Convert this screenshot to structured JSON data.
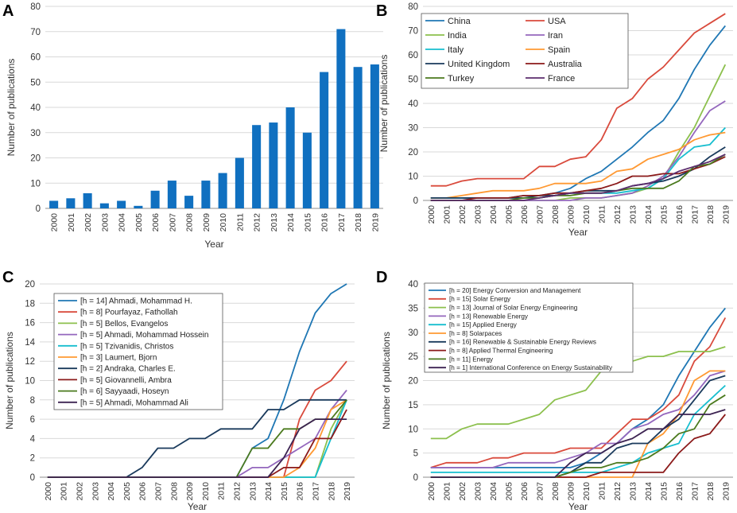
{
  "panels": [
    "A",
    "B",
    "C",
    "D"
  ],
  "chart_data": [
    {
      "panel": "A",
      "type": "bar",
      "xlabel": "Year",
      "ylabel": "Number of publications",
      "ylim": [
        0,
        80
      ],
      "yticks": [
        0,
        10,
        20,
        30,
        40,
        50,
        60,
        70,
        80
      ],
      "color": "#1070c0",
      "categories": [
        "2000",
        "2001",
        "2002",
        "2003",
        "2004",
        "2005",
        "2006",
        "2007",
        "2008",
        "2009",
        "2010",
        "2011",
        "2012",
        "2013",
        "2014",
        "2015",
        "2016",
        "2017",
        "2018",
        "2019"
      ],
      "values": [
        3,
        4,
        6,
        2,
        3,
        1,
        7,
        11,
        5,
        11,
        14,
        20,
        33,
        34,
        40,
        30,
        54,
        71,
        56,
        57
      ]
    },
    {
      "panel": "B",
      "type": "line",
      "xlabel": "Year",
      "ylabel": "Number of publications",
      "ylim": [
        0,
        80
      ],
      "yticks": [
        0,
        10,
        20,
        30,
        40,
        50,
        60,
        70,
        80
      ],
      "legend_columns": 2,
      "x": [
        "2000",
        "2001",
        "2002",
        "2003",
        "2004",
        "2005",
        "2006",
        "2007",
        "2008",
        "2009",
        "2010",
        "2011",
        "2012",
        "2013",
        "2014",
        "2015",
        "2016",
        "2017",
        "2018",
        "2019"
      ],
      "series": [
        {
          "name": "China",
          "color": "#1f77b4",
          "values": [
            1,
            1,
            1,
            1,
            1,
            1,
            2,
            2,
            3,
            5,
            9,
            12,
            17,
            22,
            28,
            33,
            42,
            54,
            64,
            72
          ]
        },
        {
          "name": "USA",
          "color": "#d94a3c",
          "values": [
            6,
            6,
            8,
            9,
            9,
            9,
            9,
            14,
            14,
            17,
            18,
            25,
            38,
            42,
            50,
            55,
            62,
            69,
            73,
            77
          ]
        },
        {
          "name": "India",
          "color": "#8cc04d",
          "values": [
            0,
            0,
            0,
            0,
            0,
            0,
            0,
            0,
            0,
            1,
            1,
            1,
            2,
            3,
            5,
            9,
            20,
            30,
            43,
            56
          ]
        },
        {
          "name": "Iran",
          "color": "#9467bd",
          "values": [
            0,
            0,
            0,
            0,
            0,
            0,
            0,
            0,
            0,
            0,
            1,
            1,
            2,
            3,
            6,
            10,
            18,
            28,
            37,
            41
          ]
        },
        {
          "name": "Italy",
          "color": "#17becf",
          "values": [
            1,
            1,
            1,
            1,
            1,
            1,
            1,
            1,
            2,
            3,
            3,
            3,
            3,
            4,
            5,
            9,
            17,
            22,
            23,
            30
          ]
        },
        {
          "name": "Spain",
          "color": "#ff9933",
          "values": [
            1,
            1,
            2,
            3,
            4,
            4,
            4,
            5,
            7,
            7,
            7,
            8,
            12,
            13,
            17,
            19,
            21,
            25,
            27,
            28
          ]
        },
        {
          "name": "United Kingdom",
          "color": "#1a3a5c",
          "values": [
            1,
            1,
            1,
            1,
            1,
            1,
            1,
            2,
            2,
            3,
            4,
            4,
            4,
            6,
            7,
            8,
            10,
            13,
            18,
            22
          ]
        },
        {
          "name": "Australia",
          "color": "#8b1a1a",
          "values": [
            0,
            0,
            0,
            1,
            1,
            1,
            2,
            2,
            3,
            3,
            4,
            5,
            7,
            10,
            10,
            11,
            11,
            13,
            15,
            18
          ]
        },
        {
          "name": "Turkey",
          "color": "#4b7a1e",
          "values": [
            0,
            0,
            0,
            0,
            0,
            0,
            1,
            1,
            2,
            2,
            3,
            3,
            4,
            5,
            5,
            5,
            8,
            14,
            15,
            19
          ]
        },
        {
          "name": "France",
          "color": "#5c2d6e",
          "values": [
            0,
            0,
            0,
            0,
            0,
            0,
            0,
            1,
            2,
            3,
            3,
            3,
            4,
            6,
            7,
            9,
            12,
            14,
            16,
            19
          ]
        }
      ]
    },
    {
      "panel": "C",
      "type": "line",
      "xlabel": "Year",
      "ylabel": "Number of publications",
      "ylim": [
        0,
        20
      ],
      "yticks": [
        0,
        2,
        4,
        6,
        8,
        10,
        12,
        14,
        16,
        18,
        20
      ],
      "x": [
        "2000",
        "2001",
        "2002",
        "2003",
        "2004",
        "2005",
        "2006",
        "2007",
        "2008",
        "2009",
        "2010",
        "2011",
        "2012",
        "2013",
        "2014",
        "2015",
        "2016",
        "2017",
        "2018",
        "2019"
      ],
      "series": [
        {
          "name": "[h = 14] Ahmadi, Mohammad H.",
          "color": "#1f77b4",
          "values": [
            0,
            0,
            0,
            0,
            0,
            0,
            0,
            0,
            0,
            0,
            0,
            0,
            0,
            3,
            4,
            8,
            13,
            17,
            19,
            20
          ]
        },
        {
          "name": "[h = 8] Pourfayaz, Fathollah",
          "color": "#d94a3c",
          "values": [
            0,
            0,
            0,
            0,
            0,
            0,
            0,
            0,
            0,
            0,
            0,
            0,
            0,
            0,
            0,
            0,
            6,
            9,
            10,
            12
          ]
        },
        {
          "name": "[h = 5] Bellos, Evangelos",
          "color": "#8cc04d",
          "values": [
            0,
            0,
            0,
            0,
            0,
            0,
            0,
            0,
            0,
            0,
            0,
            0,
            0,
            0,
            0,
            0,
            0,
            0,
            5,
            8
          ]
        },
        {
          "name": "[h = 5] Ahmadi, Mohammad Hossein",
          "color": "#9467bd",
          "values": [
            0,
            0,
            0,
            0,
            0,
            0,
            0,
            0,
            0,
            0,
            0,
            0,
            0,
            1,
            1,
            2,
            3,
            4,
            7,
            9
          ]
        },
        {
          "name": "[h = 5] Tzivanidis, Christos",
          "color": "#17becf",
          "values": [
            0,
            0,
            0,
            0,
            0,
            0,
            0,
            0,
            0,
            0,
            0,
            0,
            0,
            0,
            0,
            0,
            0,
            0,
            4,
            8
          ]
        },
        {
          "name": "[h = 3] Laumert, Bjorn",
          "color": "#ff9933",
          "values": [
            0,
            0,
            0,
            0,
            0,
            0,
            0,
            0,
            0,
            0,
            0,
            0,
            0,
            0,
            0,
            0,
            1,
            3,
            7,
            8
          ]
        },
        {
          "name": "[h = 2] Andraka, Charles E.",
          "color": "#1a3a5c",
          "values": [
            0,
            0,
            0,
            0,
            0,
            0,
            1,
            3,
            3,
            4,
            4,
            5,
            5,
            5,
            7,
            7,
            8,
            8,
            8,
            8
          ]
        },
        {
          "name": "[h = 5] Giovannelli, Ambra",
          "color": "#8b1a1a",
          "values": [
            0,
            0,
            0,
            0,
            0,
            0,
            0,
            0,
            0,
            0,
            0,
            0,
            0,
            0,
            0,
            1,
            1,
            4,
            4,
            7
          ]
        },
        {
          "name": "[h = 6] Sayyaadi, Hoseyn",
          "color": "#4b7a1e",
          "values": [
            0,
            0,
            0,
            0,
            0,
            0,
            0,
            0,
            0,
            0,
            0,
            0,
            0,
            3,
            3,
            5,
            5,
            6,
            6,
            8
          ]
        },
        {
          "name": "[h = 5] Ahmadi, Mohammad Ali",
          "color": "#3d2352",
          "values": [
            0,
            0,
            0,
            0,
            0,
            0,
            0,
            0,
            0,
            0,
            0,
            0,
            0,
            0,
            0,
            2,
            5,
            6,
            6,
            6
          ]
        }
      ]
    },
    {
      "panel": "D",
      "type": "line",
      "xlabel": "Year",
      "ylabel": "Number of publications",
      "ylim": [
        0,
        40
      ],
      "yticks": [
        0,
        5,
        10,
        15,
        20,
        25,
        30,
        35,
        40
      ],
      "x": [
        "2000",
        "2001",
        "2002",
        "2003",
        "2004",
        "2005",
        "2006",
        "2007",
        "2008",
        "2009",
        "2010",
        "2011",
        "2012",
        "2013",
        "2014",
        "2015",
        "2016",
        "2017",
        "2018",
        "2019"
      ],
      "series": [
        {
          "name": "[h = 20] Energy Conversion and Management",
          "color": "#1f77b4",
          "values": [
            2,
            2,
            2,
            2,
            2,
            2,
            2,
            2,
            2,
            2,
            3,
            5,
            7,
            10,
            12,
            15,
            21,
            26,
            31,
            35
          ]
        },
        {
          "name": "[h = 15] Solar Energy",
          "color": "#d94a3c",
          "values": [
            2,
            3,
            3,
            3,
            4,
            4,
            5,
            5,
            5,
            6,
            6,
            6,
            9,
            12,
            12,
            14,
            17,
            24,
            27,
            33
          ]
        },
        {
          "name": "[h = 13] Journal of Solar Energy Engineering",
          "color": "#8cc04d",
          "values": [
            8,
            8,
            10,
            11,
            11,
            11,
            12,
            13,
            16,
            17,
            18,
            22,
            24,
            24,
            25,
            25,
            26,
            26,
            26,
            27
          ]
        },
        {
          "name": "[h = 13] Renewable Energy",
          "color": "#9467bd",
          "values": [
            2,
            2,
            2,
            2,
            2,
            3,
            3,
            3,
            3,
            4,
            5,
            7,
            7,
            10,
            11,
            13,
            14,
            17,
            21,
            22
          ]
        },
        {
          "name": "[h = 15] Applied Energy",
          "color": "#17becf",
          "values": [
            1,
            1,
            1,
            1,
            1,
            1,
            1,
            1,
            1,
            1,
            1,
            1,
            2,
            3,
            5,
            6,
            7,
            13,
            16,
            19
          ]
        },
        {
          "name": "[h = 8] Solarpaces",
          "color": "#ff9933",
          "values": [
            0,
            0,
            0,
            0,
            0,
            0,
            0,
            0,
            0,
            0,
            0,
            0,
            0,
            0,
            7,
            9,
            13,
            20,
            22,
            22
          ]
        },
        {
          "name": "[h = 16] Renewable & Sustainable Energy Reviews",
          "color": "#1a3a5c",
          "values": [
            0,
            0,
            0,
            0,
            0,
            0,
            0,
            0,
            0,
            1,
            3,
            3,
            6,
            7,
            7,
            10,
            12,
            16,
            20,
            21
          ]
        },
        {
          "name": "[h = 8] Applied Thermal Engineering",
          "color": "#8b1a1a",
          "values": [
            0,
            0,
            0,
            0,
            0,
            0,
            0,
            0,
            0,
            0,
            0,
            1,
            1,
            1,
            1,
            1,
            5,
            8,
            9,
            13
          ]
        },
        {
          "name": "[h = 11] Energy",
          "color": "#4b7a1e",
          "values": [
            0,
            0,
            0,
            0,
            0,
            0,
            0,
            0,
            0,
            1,
            2,
            2,
            3,
            3,
            4,
            6,
            9,
            10,
            15,
            17
          ]
        },
        {
          "name": "[h = 1] International Conference on Energy Sustainability",
          "color": "#3d2352",
          "values": [
            0,
            0,
            0,
            0,
            0,
            0,
            0,
            0,
            0,
            3,
            5,
            5,
            7,
            8,
            10,
            10,
            13,
            13,
            13,
            14
          ]
        }
      ]
    }
  ]
}
